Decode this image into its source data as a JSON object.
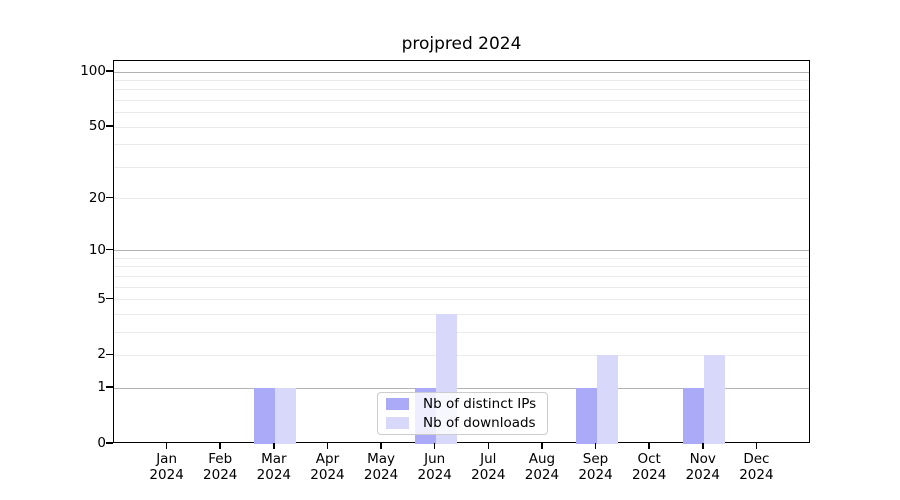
{
  "title": "projpred 2024",
  "chart_data": {
    "type": "bar",
    "title": "projpred 2024",
    "categories": [
      "Jan",
      "Feb",
      "Mar",
      "Apr",
      "May",
      "Jun",
      "Jul",
      "Aug",
      "Sep",
      "Oct",
      "Nov",
      "Dec"
    ],
    "year_label": "2024",
    "series": [
      {
        "name": "Nb of distinct IPs",
        "color": "#aaaaf8",
        "values": [
          0,
          0,
          1,
          0,
          0,
          1,
          0,
          0,
          1,
          0,
          1,
          0
        ]
      },
      {
        "name": "Nb of downloads",
        "color": "#d8d8fa",
        "values": [
          0,
          0,
          1,
          0,
          0,
          4,
          0,
          0,
          2,
          0,
          2,
          0
        ]
      }
    ],
    "yscale": "log1p",
    "ylim": [
      0,
      100
    ],
    "y_ticks": [
      0,
      1,
      2,
      5,
      10,
      20,
      50,
      100
    ],
    "y_major_gridlines": [
      1,
      10,
      100
    ],
    "y_minor_gridlines": [
      2,
      3,
      4,
      5,
      6,
      7,
      8,
      9,
      20,
      30,
      40,
      50,
      60,
      70,
      80,
      90
    ],
    "grid": "on",
    "legend_position": "lower center",
    "colors": {
      "major_gridline": "#b3b3b3",
      "minor_gridline": "#ebebeb",
      "axis_border": "#000000",
      "background": "#ffffff"
    }
  }
}
